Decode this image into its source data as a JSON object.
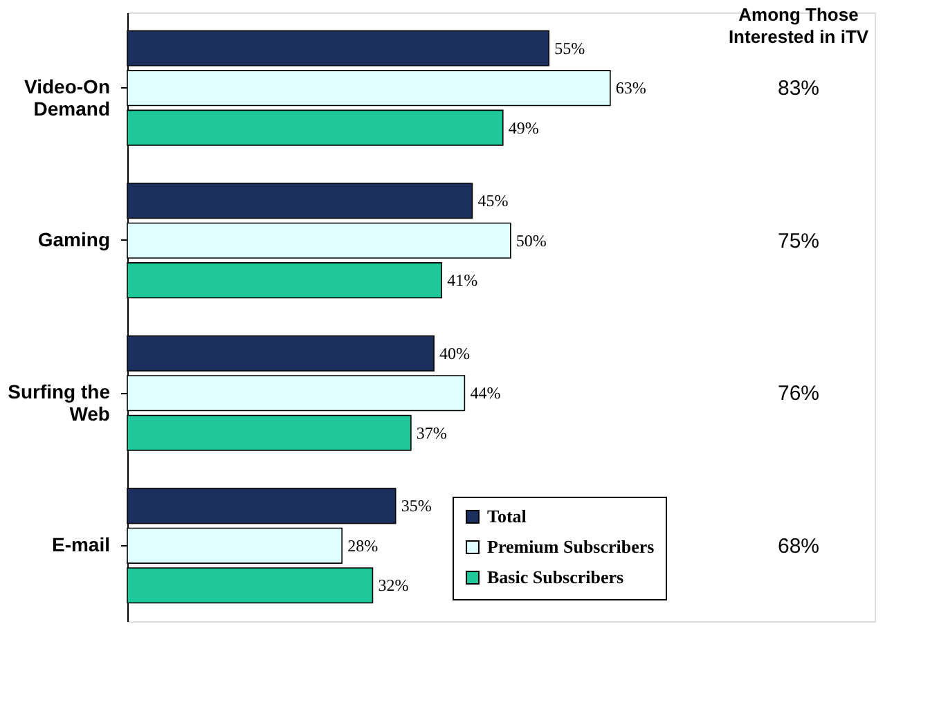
{
  "chart_data": {
    "type": "bar",
    "orientation": "horizontal",
    "categories": [
      "Video-On Demand",
      "Gaming",
      "Surfing the Web",
      "E-mail"
    ],
    "series": [
      {
        "name": "Total",
        "color": "#1b2f5e",
        "values": [
          55,
          45,
          40,
          35
        ],
        "value_labels": [
          "55%",
          "45%",
          "40%",
          "35%"
        ]
      },
      {
        "name": "Premium Subscribers",
        "color": "#e0ffff",
        "values": [
          63,
          50,
          44,
          28
        ],
        "value_labels": [
          "63%",
          "50%",
          "44%",
          "28%"
        ]
      },
      {
        "name": "Basic Subscribers",
        "color": "#1fc89b",
        "values": [
          49,
          41,
          37,
          32
        ],
        "value_labels": [
          "49%",
          "41%",
          "37%",
          "32%"
        ]
      }
    ],
    "annotations": [
      "Among Those Interested in iTV",
      "83%",
      "75%",
      "76%",
      "68%"
    ],
    "legend": "bottom right",
    "grid": false,
    "tick_labels": "y"
  }
}
